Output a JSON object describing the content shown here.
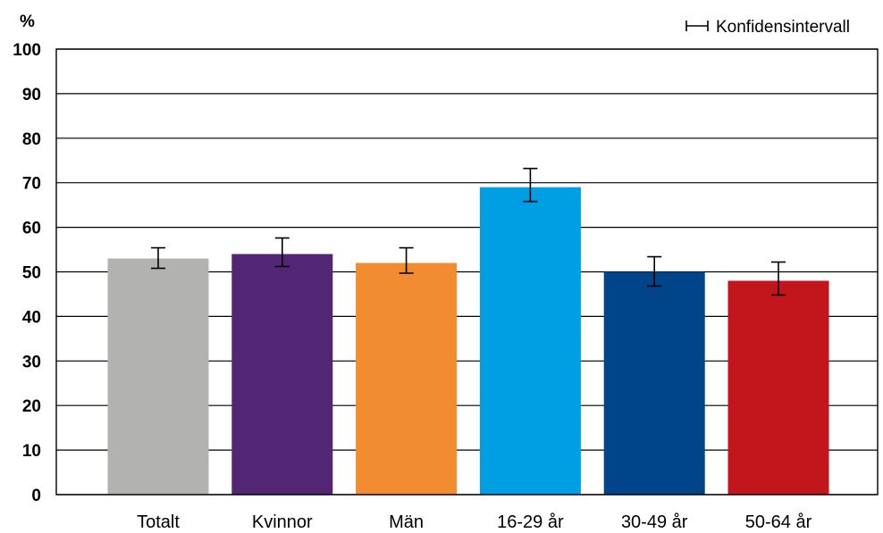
{
  "chart_data": {
    "type": "bar",
    "categories": [
      "Totalt",
      "Kvinnor",
      "Män",
      "16-29 år",
      "30-49 år",
      "50-64 år"
    ],
    "values": [
      53,
      54,
      52,
      69,
      50,
      48
    ],
    "ci_low": [
      50.8,
      51.2,
      49.7,
      65.8,
      46.8,
      44.8
    ],
    "ci_high": [
      55.4,
      57.6,
      55.4,
      73.2,
      53.4,
      52.2
    ],
    "colors": [
      "#b2b2b1",
      "#532575",
      "#f28c30",
      "#009fe3",
      "#004489",
      "#c3161c"
    ],
    "ylim": [
      0,
      100
    ],
    "yticks": [
      0,
      10,
      20,
      30,
      40,
      50,
      60,
      70,
      80,
      90,
      100
    ],
    "ylabel": "%",
    "grid": true,
    "legend": {
      "position": "top-right",
      "label": "Konfidensintervall"
    }
  }
}
